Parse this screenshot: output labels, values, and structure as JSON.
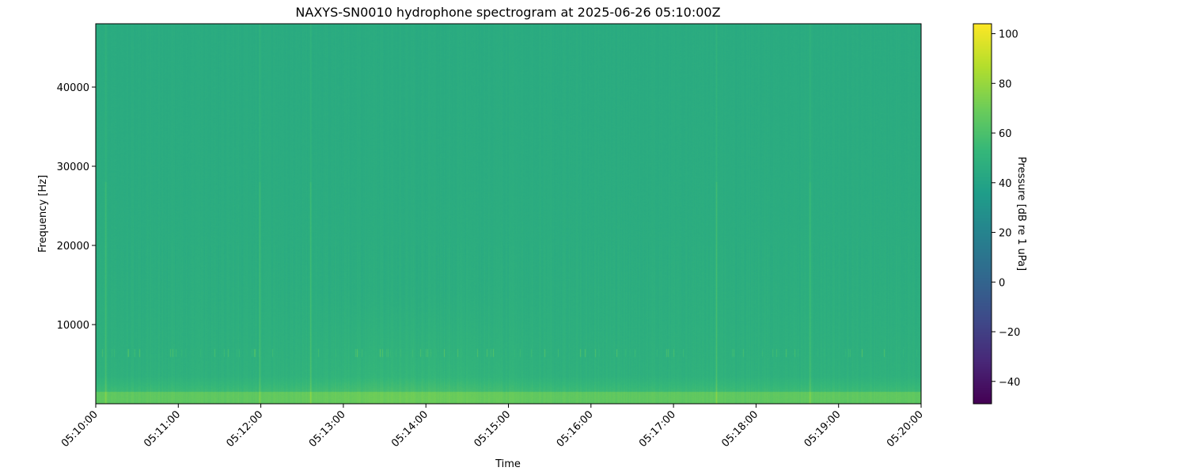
{
  "chart_data": {
    "type": "heatmap",
    "title": "NAXYS-SN0010 hydrophone spectrogram at 2025-06-26 05:10:00Z",
    "xlabel": "Time",
    "ylabel": "Frequency [Hz]",
    "xlim": [
      "05:10:00",
      "05:20:00"
    ],
    "ylim": [
      0,
      48000
    ],
    "x_ticks": [
      "05:10:00",
      "05:11:00",
      "05:12:00",
      "05:13:00",
      "05:14:00",
      "05:15:00",
      "05:16:00",
      "05:17:00",
      "05:18:00",
      "05:19:00",
      "05:20:00"
    ],
    "y_ticks": [
      10000,
      20000,
      30000,
      40000
    ],
    "y_tick_labels": [
      "10000",
      "20000",
      "30000",
      "40000"
    ],
    "colormap": "viridis",
    "colorbar": {
      "label": "Pressure [dB re 1 uPa]",
      "range": [
        -49,
        104
      ],
      "ticks": [
        -40,
        -20,
        0,
        20,
        40,
        60,
        80,
        100
      ],
      "tick_labels": [
        "−40",
        "−20",
        "0",
        "20",
        "40",
        "60",
        "80",
        "100"
      ]
    },
    "levels_db": {
      "high_freq_background": 45,
      "mid_freq_background": 50,
      "low_freq_band_0_1500Hz": 66,
      "tonal_band_6400Hz_peaks": 70,
      "broadband_transient_peaks": 66
    },
    "tonal_band_hz": 6400,
    "broadband_transients": [
      "05:10:07",
      "05:11:59",
      "05:12:36",
      "05:17:31",
      "05:18:39"
    ],
    "elevated_low_freq_period": [
      "05:12:30",
      "05:15:00"
    ],
    "grid": false
  }
}
